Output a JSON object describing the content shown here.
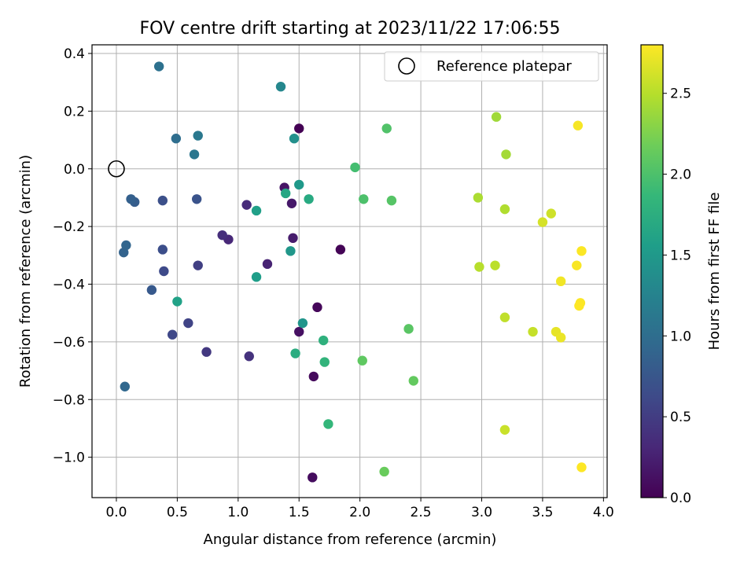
{
  "chart_data": {
    "type": "scatter",
    "title": "FOV centre drift starting at 2023/11/22 17:06:55",
    "xlabel": "Angular distance from reference (arcmin)",
    "ylabel": "Rotation from reference (arcmin)",
    "xlim": [
      -0.2,
      4.03
    ],
    "ylim": [
      -1.14,
      0.43
    ],
    "x_ticks": [
      0.0,
      0.5,
      1.0,
      1.5,
      2.0,
      2.5,
      3.0,
      3.5,
      4.0
    ],
    "x_tick_labels": [
      "0.0",
      "0.5",
      "1.0",
      "1.5",
      "2.0",
      "2.5",
      "3.0",
      "3.5",
      "4.0"
    ],
    "y_ticks": [
      -1.0,
      -0.8,
      -0.6,
      -0.4,
      -0.2,
      0.0,
      0.2,
      0.4
    ],
    "y_tick_labels": [
      "−1.0",
      "−0.8",
      "−0.6",
      "−0.4",
      "−0.2",
      "0.0",
      "0.2",
      "0.4"
    ],
    "grid": true,
    "legend": {
      "position": "top-right",
      "entries": [
        "Reference platepar"
      ]
    },
    "reference_point": {
      "x": 0.0,
      "y": 0.0,
      "label": "Reference platepar"
    },
    "colorbar": {
      "label": "Hours from first FF file",
      "range": [
        0.0,
        2.8
      ],
      "ticks": [
        0.0,
        0.5,
        1.0,
        1.5,
        2.0,
        2.5
      ],
      "tick_labels": [
        "0.0",
        "0.5",
        "1.0",
        "1.5",
        "2.0",
        "2.5"
      ],
      "colormap": "viridis"
    },
    "points": [
      {
        "x": 1.5,
        "y": 0.14,
        "c": 0.0
      },
      {
        "x": 1.84,
        "y": -0.28,
        "c": 0.02
      },
      {
        "x": 1.65,
        "y": -0.48,
        "c": 0.05
      },
      {
        "x": 1.62,
        "y": -0.72,
        "c": 0.07
      },
      {
        "x": 1.61,
        "y": -1.07,
        "c": 0.09
      },
      {
        "x": 1.5,
        "y": -0.565,
        "c": 0.12
      },
      {
        "x": 1.38,
        "y": -0.065,
        "c": 0.15
      },
      {
        "x": 1.44,
        "y": -0.12,
        "c": 0.18
      },
      {
        "x": 1.45,
        "y": -0.24,
        "c": 0.22
      },
      {
        "x": 1.24,
        "y": -0.33,
        "c": 0.27
      },
      {
        "x": 0.92,
        "y": -0.245,
        "c": 0.31
      },
      {
        "x": 1.07,
        "y": -0.125,
        "c": 0.34
      },
      {
        "x": 0.87,
        "y": -0.23,
        "c": 0.37
      },
      {
        "x": 1.09,
        "y": -0.65,
        "c": 0.4
      },
      {
        "x": 0.74,
        "y": -0.635,
        "c": 0.46
      },
      {
        "x": 0.67,
        "y": -0.335,
        "c": 0.52
      },
      {
        "x": 0.59,
        "y": -0.535,
        "c": 0.57
      },
      {
        "x": 0.46,
        "y": -0.575,
        "c": 0.6
      },
      {
        "x": 0.39,
        "y": -0.355,
        "c": 0.62
      },
      {
        "x": 0.38,
        "y": -0.28,
        "c": 0.66
      },
      {
        "x": 0.38,
        "y": -0.11,
        "c": 0.68
      },
      {
        "x": 0.66,
        "y": -0.105,
        "c": 0.72
      },
      {
        "x": 0.29,
        "y": -0.42,
        "c": 0.78
      },
      {
        "x": 0.15,
        "y": -0.115,
        "c": 0.82
      },
      {
        "x": 0.12,
        "y": -0.105,
        "c": 0.85
      },
      {
        "x": 0.06,
        "y": -0.29,
        "c": 0.88
      },
      {
        "x": 0.08,
        "y": -0.265,
        "c": 0.91
      },
      {
        "x": 0.07,
        "y": -0.755,
        "c": 0.93
      },
      {
        "x": 0.49,
        "y": 0.105,
        "c": 1.0
      },
      {
        "x": 0.35,
        "y": 0.355,
        "c": 1.04
      },
      {
        "x": 0.64,
        "y": 0.05,
        "c": 1.1
      },
      {
        "x": 0.67,
        "y": 0.115,
        "c": 1.12
      },
      {
        "x": 1.35,
        "y": 0.285,
        "c": 1.3
      },
      {
        "x": 1.46,
        "y": 0.105,
        "c": 1.4
      },
      {
        "x": 1.53,
        "y": -0.535,
        "c": 1.45
      },
      {
        "x": 1.43,
        "y": -0.285,
        "c": 1.48
      },
      {
        "x": 1.5,
        "y": -0.055,
        "c": 1.5
      },
      {
        "x": 1.15,
        "y": -0.375,
        "c": 1.55
      },
      {
        "x": 1.15,
        "y": -0.145,
        "c": 1.58
      },
      {
        "x": 0.5,
        "y": -0.46,
        "c": 1.6
      },
      {
        "x": 1.39,
        "y": -0.085,
        "c": 1.65
      },
      {
        "x": 1.58,
        "y": -0.105,
        "c": 1.7
      },
      {
        "x": 1.47,
        "y": -0.64,
        "c": 1.73
      },
      {
        "x": 1.7,
        "y": -0.595,
        "c": 1.78
      },
      {
        "x": 1.71,
        "y": -0.67,
        "c": 1.82
      },
      {
        "x": 1.74,
        "y": -0.885,
        "c": 1.85
      },
      {
        "x": 1.96,
        "y": 0.005,
        "c": 1.95
      },
      {
        "x": 2.03,
        "y": -0.105,
        "c": 2.0
      },
      {
        "x": 2.22,
        "y": 0.14,
        "c": 2.02
      },
      {
        "x": 2.26,
        "y": -0.11,
        "c": 2.05
      },
      {
        "x": 2.4,
        "y": -0.555,
        "c": 2.07
      },
      {
        "x": 2.02,
        "y": -0.665,
        "c": 2.1
      },
      {
        "x": 2.44,
        "y": -0.735,
        "c": 2.12
      },
      {
        "x": 2.2,
        "y": -1.05,
        "c": 2.15
      },
      {
        "x": 3.12,
        "y": 0.18,
        "c": 2.4
      },
      {
        "x": 3.2,
        "y": 0.05,
        "c": 2.42
      },
      {
        "x": 2.97,
        "y": -0.1,
        "c": 2.45
      },
      {
        "x": 3.19,
        "y": -0.14,
        "c": 2.47
      },
      {
        "x": 2.98,
        "y": -0.34,
        "c": 2.5
      },
      {
        "x": 3.11,
        "y": -0.335,
        "c": 2.52
      },
      {
        "x": 3.19,
        "y": -0.515,
        "c": 2.54
      },
      {
        "x": 3.42,
        "y": -0.565,
        "c": 2.56
      },
      {
        "x": 3.19,
        "y": -0.905,
        "c": 2.58
      },
      {
        "x": 3.57,
        "y": -0.155,
        "c": 2.6
      },
      {
        "x": 3.5,
        "y": -0.185,
        "c": 2.63
      },
      {
        "x": 3.61,
        "y": -0.565,
        "c": 2.7
      },
      {
        "x": 3.65,
        "y": -0.585,
        "c": 2.72
      },
      {
        "x": 3.65,
        "y": -0.39,
        "c": 2.75
      },
      {
        "x": 3.79,
        "y": 0.15,
        "c": 2.77
      },
      {
        "x": 3.78,
        "y": -0.335,
        "c": 2.78
      },
      {
        "x": 3.82,
        "y": -0.285,
        "c": 2.79
      },
      {
        "x": 3.81,
        "y": -0.465,
        "c": 2.79
      },
      {
        "x": 3.8,
        "y": -0.475,
        "c": 2.8
      },
      {
        "x": 3.82,
        "y": -1.035,
        "c": 2.8
      }
    ]
  }
}
